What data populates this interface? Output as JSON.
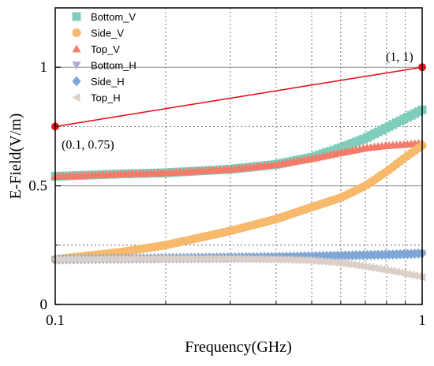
{
  "chart_data": {
    "type": "scatter",
    "x_scale": "log",
    "xlim": [
      0.1,
      1
    ],
    "ylim": [
      0,
      1.25
    ],
    "xlabel": "Frequency(GHz)",
    "ylabel": "E-Field(V/m)",
    "x_ticks": [
      "0.1",
      "1"
    ],
    "y_ticks": [
      "0",
      "0.5",
      "1"
    ],
    "grid": "major y solid, minor dashed",
    "legend_position": "top-left",
    "series": [
      {
        "name": "Bottom_V",
        "color": "#7fcdbb",
        "marker": "square",
        "x": [
          0.1,
          0.15,
          0.2,
          0.3,
          0.4,
          0.5,
          0.6,
          0.7,
          0.8,
          0.9,
          1.0
        ],
        "y": [
          0.54,
          0.55,
          0.555,
          0.57,
          0.59,
          0.62,
          0.66,
          0.7,
          0.745,
          0.785,
          0.82
        ]
      },
      {
        "name": "Side_V",
        "color": "#f7b96b",
        "marker": "circle",
        "x": [
          0.1,
          0.15,
          0.2,
          0.3,
          0.4,
          0.5,
          0.6,
          0.7,
          0.8,
          0.9,
          1.0
        ],
        "y": [
          0.19,
          0.22,
          0.25,
          0.31,
          0.36,
          0.41,
          0.45,
          0.5,
          0.56,
          0.62,
          0.67
        ]
      },
      {
        "name": "Top_V",
        "color": "#f47a6a",
        "marker": "triangle-up",
        "x": [
          0.1,
          0.15,
          0.2,
          0.3,
          0.4,
          0.5,
          0.6,
          0.7,
          0.8,
          0.9,
          1.0
        ],
        "y": [
          0.54,
          0.55,
          0.555,
          0.57,
          0.59,
          0.615,
          0.64,
          0.66,
          0.67,
          0.675,
          0.68
        ]
      },
      {
        "name": "Bottom_H",
        "color": "#b0a8d8",
        "marker": "triangle-down",
        "x": [
          0.1,
          0.15,
          0.2,
          0.3,
          0.4,
          0.5,
          0.6,
          0.7,
          0.8,
          0.9,
          1.0
        ],
        "y": [
          0.19,
          0.193,
          0.195,
          0.198,
          0.2,
          0.203,
          0.206,
          0.208,
          0.21,
          0.212,
          0.215
        ]
      },
      {
        "name": "Side_H",
        "color": "#7fa7d6",
        "marker": "diamond",
        "x": [
          0.1,
          0.15,
          0.2,
          0.3,
          0.4,
          0.5,
          0.6,
          0.7,
          0.8,
          0.9,
          1.0
        ],
        "y": [
          0.19,
          0.193,
          0.195,
          0.198,
          0.2,
          0.203,
          0.206,
          0.208,
          0.21,
          0.212,
          0.215
        ]
      },
      {
        "name": "Top_H",
        "color": "#dccfc9",
        "marker": "triangle-left",
        "x": [
          0.1,
          0.15,
          0.2,
          0.3,
          0.4,
          0.5,
          0.6,
          0.7,
          0.8,
          0.9,
          1.0
        ],
        "y": [
          0.19,
          0.192,
          0.193,
          0.193,
          0.19,
          0.185,
          0.175,
          0.16,
          0.145,
          0.13,
          0.115
        ]
      }
    ],
    "reference_line": {
      "color": "#e8141c",
      "x": [
        0.1,
        1
      ],
      "y": [
        0.75,
        1
      ]
    },
    "annotations": [
      {
        "text": "(0.1, 0.75)",
        "x": 0.1,
        "y": 0.75
      },
      {
        "text": "(1, 1)",
        "x": 1,
        "y": 1
      }
    ]
  }
}
